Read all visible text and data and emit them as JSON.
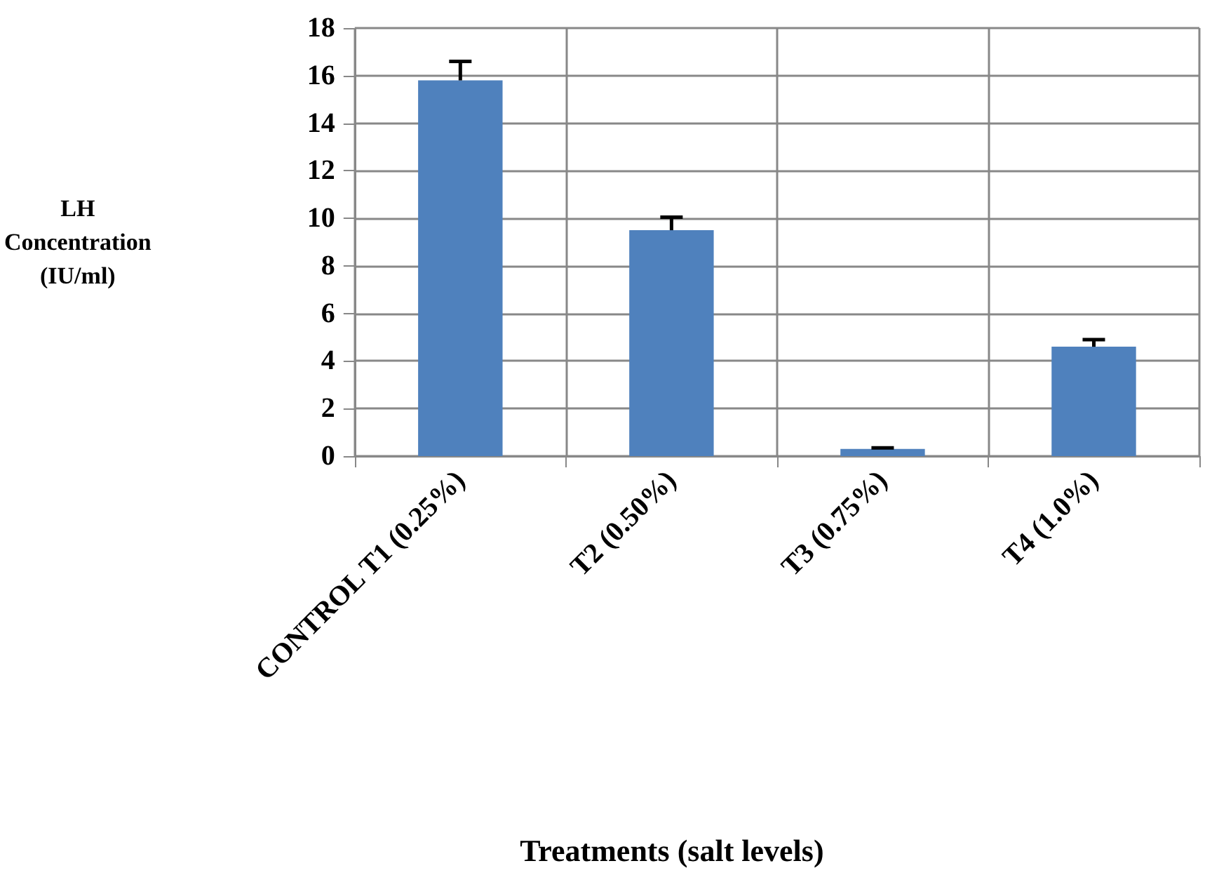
{
  "chart_data": {
    "type": "bar",
    "xlabel": "Treatments (salt levels)",
    "ylabel": "LH\nConcentration\n(IU/ml)",
    "categories": [
      "CONTROL T1 (0.25%)",
      "T2 (0.50%)",
      "T3 (0.75%)",
      "T4 (1.0%)"
    ],
    "values": [
      15.8,
      9.5,
      0.3,
      4.6
    ],
    "color": "#4f81bd",
    "errors": [
      [
        15.8,
        16.6
      ],
      [
        9.5,
        10.05
      ],
      [
        0.3,
        0.35
      ],
      [
        4.6,
        4.9
      ]
    ],
    "ylim": [
      0,
      18
    ],
    "yticks": [
      0,
      2,
      4,
      6,
      8,
      10,
      12,
      14,
      16,
      18
    ],
    "grid": true
  }
}
